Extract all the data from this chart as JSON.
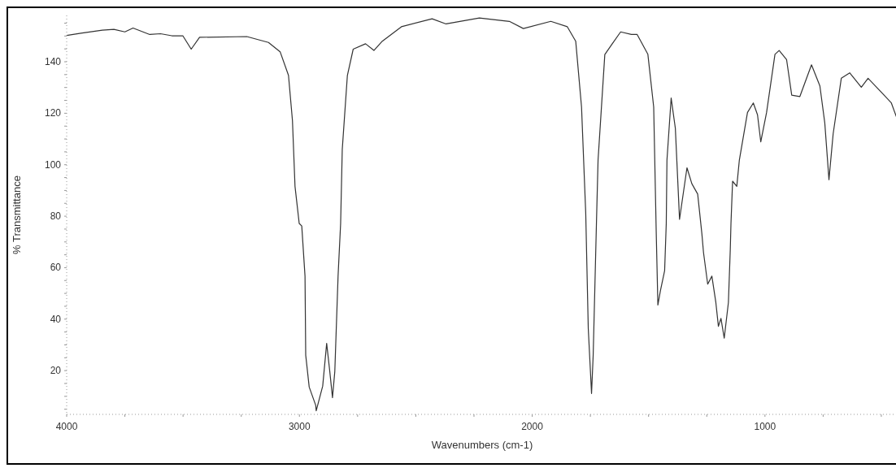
{
  "chart_data": {
    "type": "line",
    "xlabel": "Wavenumbers (cm-1)",
    "ylabel": "% Transmittance",
    "xlim": [
      4000,
      430
    ],
    "ylim": [
      3,
      158
    ],
    "xticks": [
      4000,
      {
        "value": 3750,
        "label": null
      },
      {
        "value": 3500,
        "label": null
      },
      {
        "value": 3250,
        "label": null
      },
      3000,
      {
        "value": 2750,
        "label": null
      },
      {
        "value": 2500,
        "label": null
      },
      {
        "value": 2250,
        "label": null
      },
      2000,
      {
        "value": 1750,
        "label": null
      },
      {
        "value": 1500,
        "label": null
      },
      {
        "value": 1250,
        "label": null
      },
      1000,
      {
        "value": 750,
        "label": null
      },
      {
        "value": 500,
        "label": null
      }
    ],
    "yticks": [
      {
        "value": 5,
        "label": null
      },
      {
        "value": 10,
        "label": null
      },
      {
        "value": 15,
        "label": null
      },
      20,
      {
        "value": 25,
        "label": null
      },
      {
        "value": 30,
        "label": null
      },
      {
        "value": 35,
        "label": null
      },
      40,
      {
        "value": 45,
        "label": null
      },
      {
        "value": 50,
        "label": null
      },
      {
        "value": 55,
        "label": null
      },
      60,
      {
        "value": 65,
        "label": null
      },
      {
        "value": 70,
        "label": null
      },
      {
        "value": 75,
        "label": null
      },
      80,
      {
        "value": 85,
        "label": null
      },
      {
        "value": 90,
        "label": null
      },
      {
        "value": 95,
        "label": null
      },
      100,
      {
        "value": 105,
        "label": null
      },
      {
        "value": 110,
        "label": null
      },
      {
        "value": 115,
        "label": null
      },
      120,
      {
        "value": 125,
        "label": null
      },
      {
        "value": 130,
        "label": null
      },
      {
        "value": 135,
        "label": null
      },
      140,
      {
        "value": 145,
        "label": null
      },
      {
        "value": 150,
        "label": null
      },
      {
        "value": 155,
        "label": null
      }
    ],
    "grid": false,
    "legend": false,
    "marker": "none",
    "line_style": "solid",
    "series": [
      {
        "color": "#333333",
        "x": [
          4000,
          3939,
          3847,
          3797,
          3750,
          3715,
          3643,
          3597,
          3548,
          3501,
          3465,
          3429,
          3226,
          3133,
          3083,
          3047,
          3030,
          3019,
          3001,
          2990,
          2976,
          2973,
          2958,
          2930,
          2928,
          2900,
          2883,
          2870,
          2858,
          2848,
          2834,
          2823,
          2816,
          2794,
          2769,
          2716,
          2680,
          2644,
          2562,
          2430,
          2370,
          2227,
          2098,
          2038,
          1920,
          1849,
          1813,
          1788,
          1770,
          1759,
          1745,
          1738,
          1724,
          1717,
          1688,
          1656,
          1620,
          1574,
          1549,
          1503,
          1478,
          1467,
          1460,
          1449,
          1431,
          1424,
          1421,
          1403,
          1385,
          1367,
          1335,
          1314,
          1289,
          1271,
          1264,
          1246,
          1228,
          1211,
          1200,
          1189,
          1175,
          1157,
          1149,
          1146,
          1139,
          1121,
          1110,
          1075,
          1050,
          1032,
          1018,
          993,
          957,
          939,
          907,
          885,
          850,
          800,
          764,
          743,
          725,
          707,
          672,
          636,
          586,
          557,
          493,
          457,
          432
        ],
        "values": [
          150.2,
          151.1,
          152.3,
          152.6,
          151.6,
          153.1,
          150.6,
          150.9,
          150.1,
          150.1,
          144.9,
          149.5,
          149.8,
          147.5,
          143.9,
          134.7,
          117.2,
          91.6,
          77.2,
          76.2,
          56.7,
          26.0,
          13.6,
          6.5,
          4.4,
          14,
          30.6,
          20,
          9.5,
          19.7,
          56.7,
          77.2,
          105.9,
          134.7,
          144.9,
          147.0,
          144.4,
          148.0,
          153.6,
          156.7,
          154.7,
          157.0,
          155.7,
          152.9,
          155.7,
          153.6,
          148.0,
          122.4,
          81.3,
          36.2,
          11.1,
          25.9,
          77.2,
          101.8,
          142.8,
          147.0,
          151.6,
          150.6,
          150.6,
          142.9,
          122.4,
          73.2,
          45.5,
          51.1,
          58.8,
          77.2,
          101.8,
          125.9,
          114.2,
          78.8,
          98.8,
          92.6,
          88.6,
          73.2,
          65.9,
          53.6,
          56.7,
          46.5,
          37.2,
          40.3,
          32.6,
          46.5,
          67.0,
          77.2,
          93.6,
          91.6,
          101.8,
          120.3,
          124.0,
          119.4,
          108.9,
          120.3,
          142.9,
          144.4,
          140.8,
          127.0,
          126.5,
          138.8,
          130.6,
          116.3,
          94.2,
          112.0,
          133.6,
          135.7,
          130.1,
          133.6,
          127.5,
          124.0,
          117.8
        ]
      }
    ]
  }
}
